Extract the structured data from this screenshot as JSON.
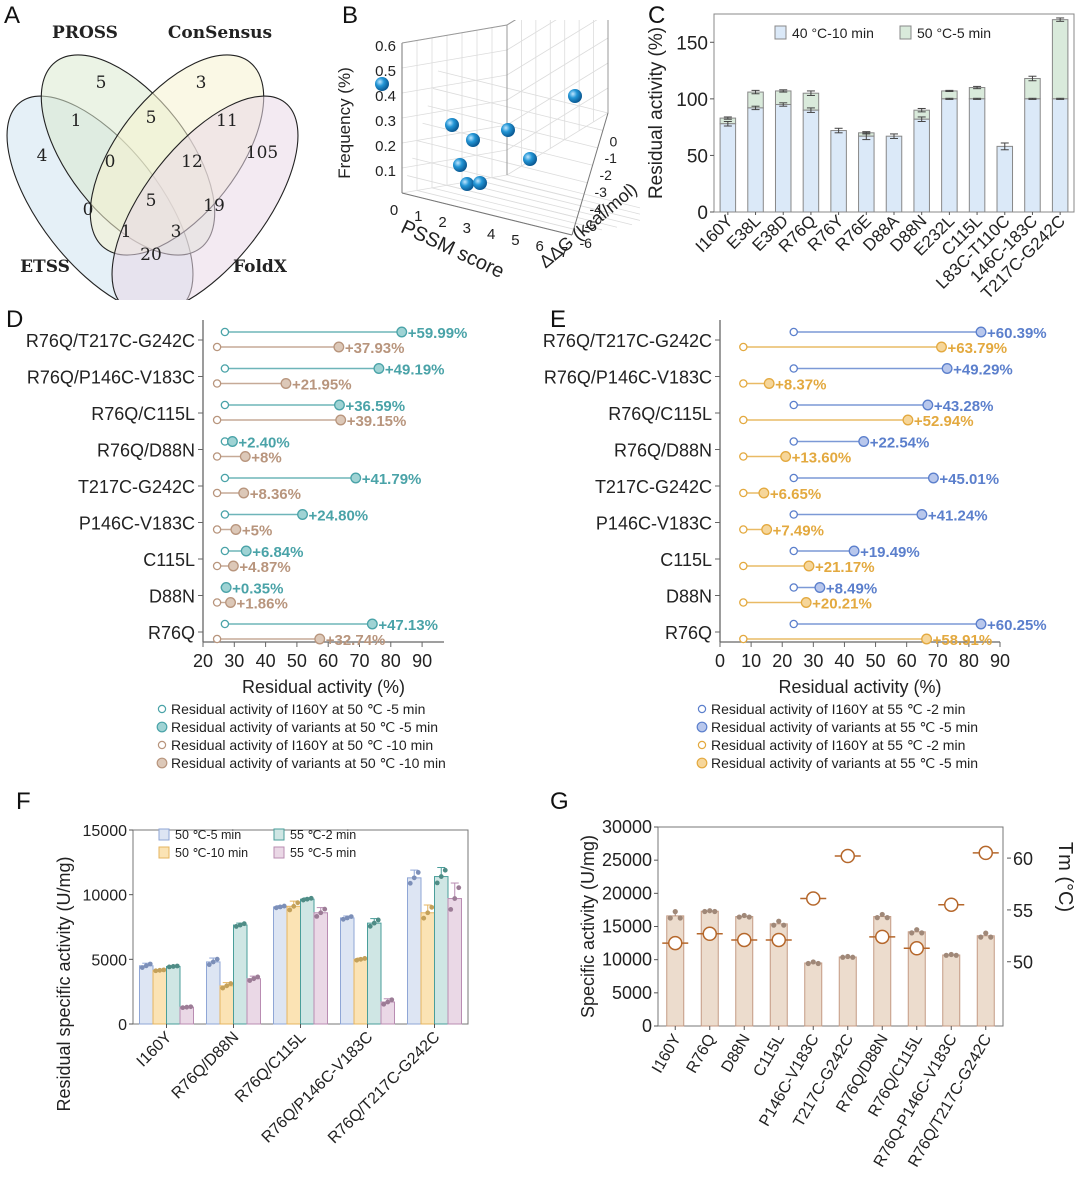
{
  "panels": {
    "A": "A",
    "B": "B",
    "C": "C",
    "D": "D",
    "E": "E",
    "F": "F",
    "G": "G"
  },
  "chart_data": [
    {
      "id": "A",
      "type": "venn",
      "sets": [
        "PROSS",
        "ConSensus",
        "ETSS",
        "FoldX"
      ],
      "regions": [
        {
          "label": "PROSS only",
          "value": 5
        },
        {
          "label": "ConSensus only",
          "value": 3
        },
        {
          "label": "ETSS only",
          "value": 4
        },
        {
          "label": "FoldX only",
          "value": 105
        },
        {
          "label": "ETSS∩PROSS",
          "value": 1
        },
        {
          "label": "PROSS∩ConSensus",
          "value": 5
        },
        {
          "label": "ConSensus∩FoldX",
          "value": 11
        },
        {
          "label": "ETSS∩PROSS∩ConSensus",
          "value": 0
        },
        {
          "label": "PROSS∩ConSensus∩FoldX",
          "value": 12
        },
        {
          "label": "ETSS∩ConSensus",
          "value": 0
        },
        {
          "label": "All four",
          "value": 5
        },
        {
          "label": "PROSS∩FoldX",
          "value": 19
        },
        {
          "label": "ETSS∩ConSensus∩FoldX",
          "value": 1
        },
        {
          "label": "ETSS∩PROSS∩FoldX",
          "value": 3
        },
        {
          "label": "ETSS∩FoldX",
          "value": 20
        }
      ]
    },
    {
      "id": "B",
      "type": "scatter3d",
      "xlabel": "PSSM score",
      "ylabel": "ΔΔG (kcal/mol)",
      "zlabel": "Frequency (%)",
      "x_ticks": [
        "0",
        "1",
        "2",
        "3",
        "4",
        "5",
        "6",
        "7"
      ],
      "y_ticks": [
        "-6",
        "-5",
        "-4",
        "-3",
        "-2",
        "-1",
        "0"
      ],
      "z_ticks": [
        "0.1",
        "0.2",
        "0.3",
        "0.4",
        "0.5",
        "0.6"
      ],
      "points": [
        {
          "z": 0.53
        },
        {
          "z": 0.37
        },
        {
          "z": 0.3
        },
        {
          "z": 0.35
        },
        {
          "z": 0.2
        },
        {
          "z": 0.23
        },
        {
          "z": 0.12
        },
        {
          "z": 0.12
        },
        {
          "z": 0.48
        }
      ]
    },
    {
      "id": "C",
      "type": "bar",
      "stacked": true,
      "ylabel": "Residual activity (%)",
      "ylim": [
        0,
        175
      ],
      "yticks": [
        0,
        50,
        100,
        150
      ],
      "categories": [
        "I160Y",
        "E38L",
        "E38D",
        "R76Q",
        "R76Y",
        "R76E",
        "D88A",
        "D88N",
        "E232L",
        "C115L",
        "L83C-T110C",
        "146C-183C",
        "T217C-G242C"
      ],
      "series": [
        {
          "name": "40 °C-10 min",
          "color": "#dbe9f8",
          "values": [
            78,
            92,
            95,
            90,
            72,
            67,
            67,
            82,
            100,
            100,
            58,
            100,
            100
          ],
          "err": [
            2,
            1.5,
            1.5,
            2,
            2,
            3,
            2,
            2,
            0.5,
            0.5,
            3,
            0.5,
            0.5
          ]
        },
        {
          "name": "50 °C-5 min",
          "color": "#d9eadb",
          "values": [
            83,
            106,
            107,
            105,
            0,
            70,
            0,
            90,
            107,
            110,
            0,
            118,
            170
          ],
          "err": [
            1,
            1.5,
            1,
            2,
            0,
            1,
            0,
            1.5,
            0.5,
            1,
            0,
            2,
            1.5
          ]
        }
      ]
    },
    {
      "id": "D",
      "type": "dumbbell",
      "xlabel": "Residual activity (%)",
      "xlim": [
        20,
        97
      ],
      "xticks": [
        20,
        30,
        40,
        50,
        60,
        70,
        80,
        90
      ],
      "categories": [
        "R76Q/T217C-G242C",
        "R76Q/P146C-V183C",
        "R76Q/C115L",
        "R76Q/D88N",
        "T217C-G242C",
        "P146C-V183C",
        "C115L",
        "D88N",
        "R76Q"
      ],
      "series": [
        {
          "name": "50 °C -5 min",
          "color": "#4aa3a8",
          "fill": "#9fd3d4",
          "base": 27,
          "values": [
            83.5,
            76.2,
            63.6,
            29.4,
            68.8,
            51.8,
            33.8,
            27.4,
            74.1
          ],
          "labels": [
            "+59.99%",
            "+49.19%",
            "+36.59%",
            "+2.40%",
            "+41.79%",
            "+24.80%",
            "+6.84%",
            "+0.35%",
            "+47.13%"
          ]
        },
        {
          "name": "50 °C -10 min",
          "color": "#b8957d",
          "fill": "#dcc8b8",
          "base": 24.5,
          "values": [
            63.4,
            46.5,
            64.0,
            33.5,
            33.0,
            30.5,
            29.7,
            28.8,
            57.3
          ],
          "labels": [
            "+37.93%",
            "+21.95%",
            "+39.15%",
            "+8%",
            "+8.36%",
            "+5%",
            "+4.87%",
            "+1.86%",
            "+32.74%"
          ]
        }
      ],
      "legend": [
        "Residual activity of I160Y at 50 ℃ -5 min",
        "Residual activity of variants at 50 ℃ -5 min",
        "Residual activity of I160Y at 50 ℃ -10 min",
        "Residual activity of variants at 50 ℃ -10 min"
      ]
    },
    {
      "id": "E",
      "type": "dumbbell",
      "xlabel": "Residual activity (%)",
      "xlim": [
        0,
        90
      ],
      "xticks": [
        0,
        10,
        20,
        30,
        40,
        50,
        60,
        70,
        80,
        90
      ],
      "categories": [
        "R76Q/T217C-G242C",
        "R76Q/P146C-V183C",
        "R76Q/C115L",
        "R76Q/D88N",
        "T217C-G242C",
        "P146C-V183C",
        "C115L",
        "D88N",
        "R76Q"
      ],
      "series": [
        {
          "name": "55 °C -2 min",
          "color": "#5b7fcc",
          "fill": "#b8c7ec",
          "base": 23.7,
          "values": [
            83.9,
            73.0,
            66.8,
            46.2,
            68.6,
            64.9,
            43.1,
            32.1,
            83.9
          ],
          "labels": [
            "+60.39%",
            "+49.29%",
            "+43.28%",
            "+22.54%",
            "+45.01%",
            "+41.24%",
            "+19.49%",
            "+8.49%",
            "+60.25%"
          ]
        },
        {
          "name": "55 °C -5 min",
          "color": "#e3a93f",
          "fill": "#f6d69a",
          "base": 7.5,
          "values": [
            71.2,
            15.8,
            60.4,
            21.1,
            14.1,
            15.0,
            28.6,
            27.7,
            66.4
          ],
          "labels": [
            "+63.79%",
            "+8.37%",
            "+52.94%",
            "+13.60%",
            "+6.65%",
            "+7.49%",
            "+21.17%",
            "+20.21%",
            "+58.91%"
          ]
        }
      ],
      "legend": [
        "Residual activity of I160Y at 55 ℃ -2 min",
        "Residual activity of variants at 55 ℃ -5 min",
        "Residual activity of I160Y at 55 ℃ -2 min",
        "Residual activity of variants at 55 ℃ -5 min"
      ]
    },
    {
      "id": "F",
      "type": "bar",
      "ylabel": "Residual  specific activity (U/mg)",
      "ylim": [
        0,
        15000
      ],
      "yticks": [
        0,
        5000,
        10000,
        15000
      ],
      "categories": [
        "I160Y",
        "R76Q/D88N",
        "R76Q/C115L",
        "R76Q/P146C-V183C",
        "R76Q/T217C-G242C"
      ],
      "series": [
        {
          "name": "50 ℃-5 min",
          "color": "#dde5f3",
          "edge": "#8fa6d6",
          "dot": "#7c8fb8",
          "values": [
            4500,
            4800,
            9050,
            8200,
            11300
          ],
          "err": [
            200,
            300,
            100,
            150,
            600
          ]
        },
        {
          "name": "50 ℃-10 min",
          "color": "#fbe3b4",
          "edge": "#e6b560",
          "dot": "#c4a15a",
          "values": [
            4150,
            2950,
            9100,
            5000,
            8600
          ],
          "err": [
            50,
            250,
            400,
            100,
            600
          ]
        },
        {
          "name": "55 ℃-2 min",
          "color": "#cfe6e4",
          "edge": "#4a9e9a",
          "dot": "#4f8c86",
          "values": [
            4450,
            7650,
            9650,
            7800,
            11400
          ],
          "err": [
            50,
            150,
            100,
            350,
            700
          ]
        },
        {
          "name": "55 ℃-5 min",
          "color": "#ead8e6",
          "edge": "#b98cb2",
          "dot": "#9c7c96",
          "values": [
            1300,
            3500,
            8600,
            1700,
            9700
          ],
          "err": [
            50,
            200,
            400,
            250,
            1200
          ]
        }
      ]
    },
    {
      "id": "G",
      "type": "bar+scatter",
      "ylabel": "Specific activity (U/mg)",
      "y2label": "Tm (°C)",
      "ylim": [
        0,
        30000
      ],
      "yticks": [
        0,
        5000,
        10000,
        15000,
        20000,
        25000,
        30000
      ],
      "y2lim": [
        43.8,
        63
      ],
      "y2ticks": [
        50,
        55,
        60
      ],
      "categories": [
        "I160Y",
        "R76Q",
        "D88N",
        "C115L",
        "P146C-V183C",
        "T217C-G242C",
        "R76Q/D88N",
        "R76Q/C115L",
        "R76Q-P146C-V183C",
        "R76Q/T217C-G242C"
      ],
      "series": [
        {
          "name": "Specific activity",
          "color": "#ecdccd",
          "edge": "#c49a83",
          "values": [
            16600,
            17300,
            16500,
            15400,
            9500,
            10400,
            16500,
            14200,
            10700,
            13600
          ],
          "err": [
            800,
            100,
            200,
            500,
            200,
            100,
            400,
            400,
            100,
            500
          ]
        },
        {
          "name": "Tm",
          "color": "#b5672b",
          "values": [
            51.8,
            52.7,
            52.1,
            52.1,
            56.1,
            60.2,
            52.4,
            51.3,
            55.5,
            60.5
          ]
        }
      ]
    }
  ]
}
